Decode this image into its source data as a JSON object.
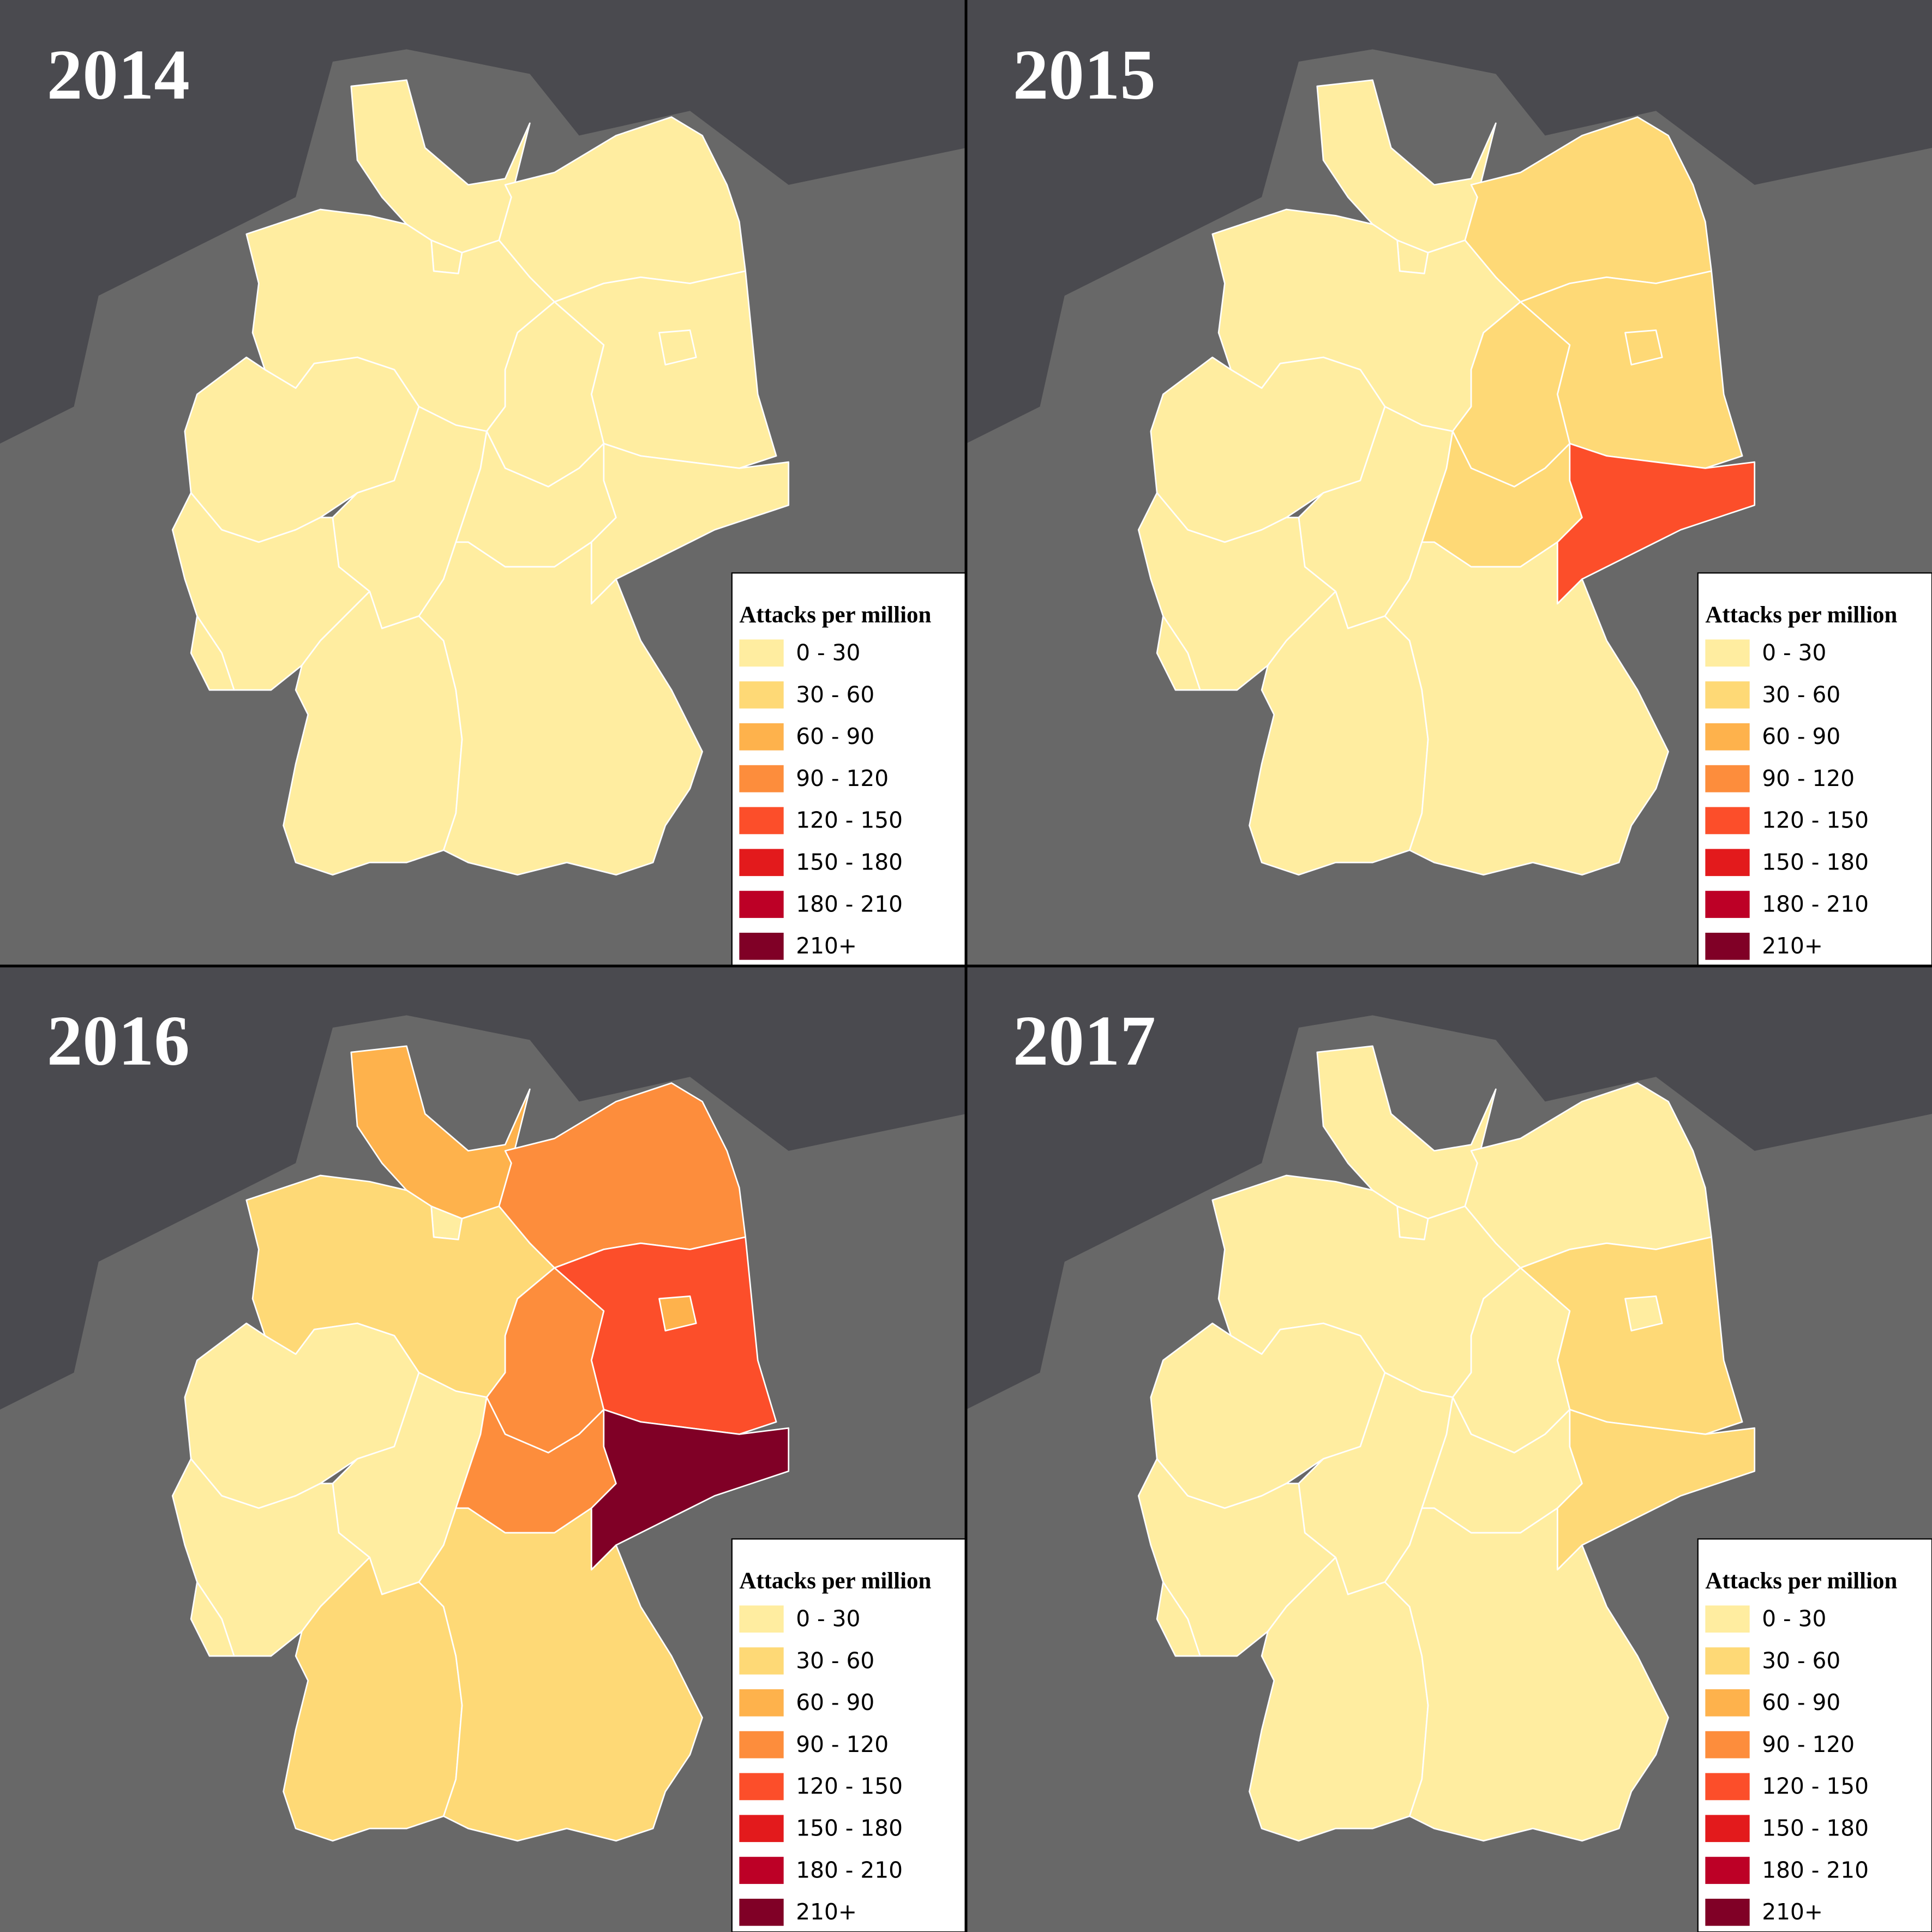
{
  "legend": {
    "title": "Attacks per million",
    "items": [
      {
        "label": "0 - 30",
        "color": "#ffeda0"
      },
      {
        "label": "30 - 60",
        "color": "#fed976"
      },
      {
        "label": "60 - 90",
        "color": "#feb24c"
      },
      {
        "label": "90 - 120",
        "color": "#fd8d3c"
      },
      {
        "label": "120 - 150",
        "color": "#fc4e2a"
      },
      {
        "label": "150 - 180",
        "color": "#e31a1c"
      },
      {
        "label": "180 - 210",
        "color": "#bd0026"
      },
      {
        "label": "210+",
        "color": "#800026"
      }
    ]
  },
  "panels": [
    {
      "year": "2014",
      "fills": [
        "#ffeda0",
        "#ffeda0",
        "#ffeda0",
        "#ffeda0",
        "#ffeda0",
        "#ffeda0",
        "#ffeda0",
        "#ffeda0",
        "#ffeda0",
        "#ffeda0",
        "#ffeda0",
        "#ffeda0",
        "#ffeda0",
        "#ffeda0",
        "#ffeda0",
        "#ffeda0"
      ]
    },
    {
      "year": "2015",
      "fills": [
        "#ffeda0",
        "#ffeda0",
        "#fed976",
        "#ffeda0",
        "#ffeda0",
        "#fed976",
        "#fed976",
        "#fed976",
        "#ffeda0",
        "#ffeda0",
        "#fed976",
        "#fc4e2a",
        "#ffeda0",
        "#ffeda0",
        "#ffeda0",
        "#ffeda0"
      ]
    },
    {
      "year": "2016",
      "fills": [
        "#feb24c",
        "#ffeda0",
        "#fd8d3c",
        "#fed976",
        "#fed976",
        "#fc4e2a",
        "#feb24c",
        "#fd8d3c",
        "#ffeda0",
        "#ffeda0",
        "#fd8d3c",
        "#800026",
        "#ffeda0",
        "#ffeda0",
        "#fed976",
        "#fed976"
      ]
    },
    {
      "year": "2017",
      "fills": [
        "#ffeda0",
        "#ffeda0",
        "#ffeda0",
        "#ffeda0",
        "#ffeda0",
        "#fed976",
        "#ffeda0",
        "#ffeda0",
        "#ffeda0",
        "#ffeda0",
        "#ffeda0",
        "#fed976",
        "#ffeda0",
        "#ffeda0",
        "#ffeda0",
        "#ffeda0"
      ]
    }
  ]
}
